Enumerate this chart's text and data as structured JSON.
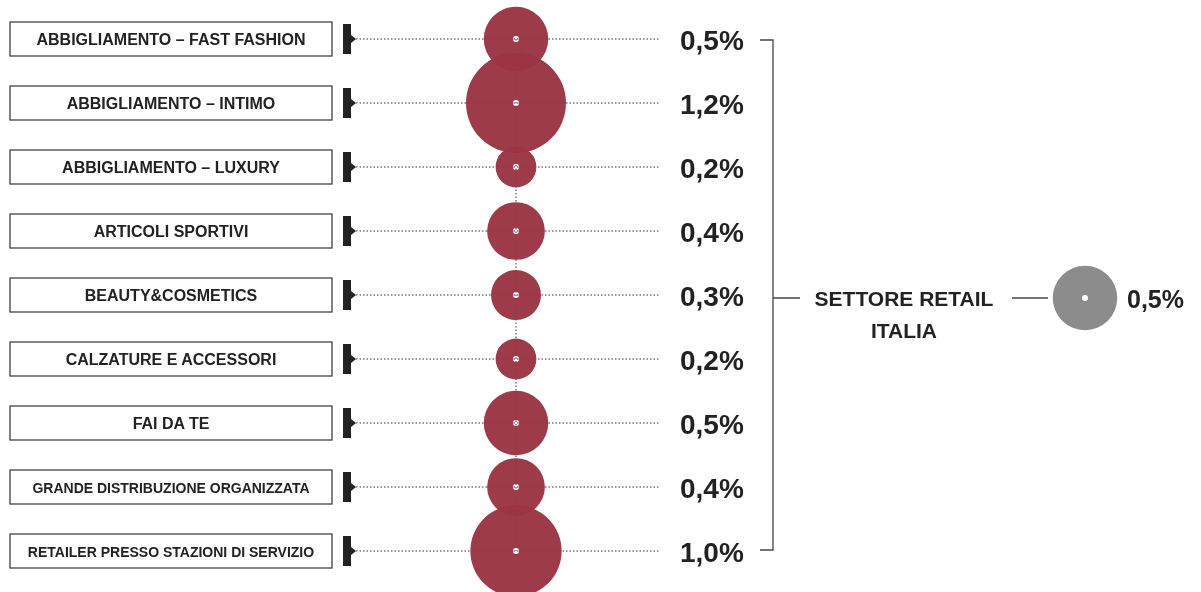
{
  "chart_data": [
    {
      "type": "other",
      "categories": [
        "ABBIGLIAMENTO – FAST FASHION",
        "ABBIGLIAMENTO – INTIMO",
        "ABBIGLIAMENTO – LUXURY",
        "ARTICOLI SPORTIVI",
        "BEAUTY&COSMETICS",
        "CALZATURE E ACCESSORI",
        "FAI DA TE",
        "GRANDE DISTRIBUZIONE ORGANIZZATA",
        "RETAILER PRESSO STAZIONI DI SERVIZIO"
      ],
      "values": [
        0.5,
        1.2,
        0.2,
        0.4,
        0.3,
        0.2,
        0.5,
        0.4,
        1.0
      ],
      "value_labels": [
        "0,5%",
        "1,2%",
        "0,2%",
        "0,4%",
        "0,3%",
        "0,2%",
        "0,5%",
        "0,4%",
        "1,0%"
      ],
      "color": "#9b3545"
    },
    {
      "type": "other",
      "categories": [
        "SETTORE RETAIL ITALIA"
      ],
      "values": [
        0.5
      ],
      "value_labels": [
        "0,5%"
      ],
      "color": "#8c8c8c"
    }
  ]
}
